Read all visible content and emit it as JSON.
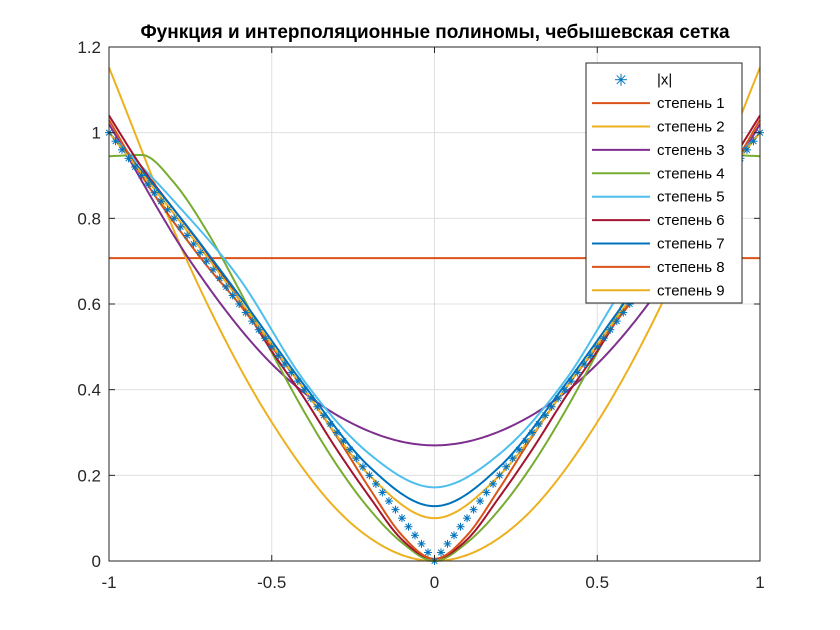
{
  "chart_data": {
    "type": "line",
    "title": "Функция и интерполяционные полиномы, чебышевская сетка",
    "xlabel": "",
    "ylabel": "",
    "xlim": [
      -1,
      1
    ],
    "ylim": [
      0,
      1.2
    ],
    "xticks": [
      {
        "value": -1,
        "label": "-1"
      },
      {
        "value": -0.5,
        "label": "-0.5"
      },
      {
        "value": 0,
        "label": "0"
      },
      {
        "value": 0.5,
        "label": "0.5"
      },
      {
        "value": 1,
        "label": "1"
      }
    ],
    "yticks": [
      {
        "value": 0,
        "label": "0"
      },
      {
        "value": 0.2,
        "label": "0.2"
      },
      {
        "value": 0.4,
        "label": "0.4"
      },
      {
        "value": 0.6,
        "label": "0.6"
      },
      {
        "value": 0.8,
        "label": "0.8"
      },
      {
        "value": 1,
        "label": "1"
      },
      {
        "value": 1.2,
        "label": "1.2"
      }
    ],
    "grid": true,
    "legend_position": "top-right",
    "function_series": {
      "name": "|x|",
      "marker": "asterisk",
      "color": "#0072BD",
      "x_range": [
        -1,
        1
      ],
      "samples": 101
    },
    "series": [
      {
        "name": "степень 1",
        "color": "#D95319",
        "x": [
          -1,
          -0.5,
          0,
          0.5,
          1
        ],
        "y": [
          0.707,
          0.707,
          0.707,
          0.707,
          0.707
        ]
      },
      {
        "name": "степень 2",
        "color": "#EDB120",
        "x": [
          -1,
          -0.75,
          -0.5,
          -0.25,
          0,
          0.25,
          0.5,
          0.75,
          1
        ],
        "y": [
          1.152,
          0.684,
          0.324,
          0.084,
          0.0,
          0.084,
          0.324,
          0.684,
          1.152
        ]
      },
      {
        "name": "степень 3",
        "color": "#7E2F8E",
        "x": [
          -1,
          -0.75,
          -0.5,
          -0.25,
          0,
          0.25,
          0.5,
          0.75,
          1
        ],
        "y": [
          1.02,
          0.7,
          0.46,
          0.32,
          0.27,
          0.32,
          0.46,
          0.7,
          1.02
        ]
      },
      {
        "name": "степень 4",
        "color": "#77AC30",
        "x": [
          -1,
          -0.9,
          -0.8,
          -0.7,
          -0.6,
          -0.5,
          -0.4,
          -0.3,
          -0.2,
          -0.1,
          0,
          0.1,
          0.2,
          0.3,
          0.4,
          0.5,
          0.6,
          0.7,
          0.8,
          0.9,
          1
        ],
        "y": [
          0.945,
          0.948,
          0.883,
          0.771,
          0.633,
          0.487,
          0.348,
          0.224,
          0.121,
          0.043,
          0.0,
          0.043,
          0.121,
          0.224,
          0.348,
          0.487,
          0.633,
          0.771,
          0.883,
          0.948,
          0.945
        ]
      },
      {
        "name": "степень 5",
        "color": "#4DBEEE",
        "x": [
          -1,
          -0.8,
          -0.6,
          -0.4,
          -0.2,
          0,
          0.2,
          0.4,
          0.6,
          0.8,
          1
        ],
        "y": [
          1.0,
          0.84,
          0.66,
          0.42,
          0.25,
          0.172,
          0.25,
          0.42,
          0.66,
          0.84,
          1.0
        ]
      },
      {
        "name": "степень 6",
        "color": "#A2142F",
        "x": [
          -1,
          -0.9,
          -0.8,
          -0.7,
          -0.6,
          -0.5,
          -0.4,
          -0.3,
          -0.2,
          -0.1,
          0,
          0.1,
          0.2,
          0.3,
          0.4,
          0.5,
          0.6,
          0.7,
          0.8,
          0.9,
          1
        ],
        "y": [
          1.04,
          0.92,
          0.82,
          0.72,
          0.61,
          0.49,
          0.38,
          0.26,
          0.15,
          0.05,
          0.005,
          0.05,
          0.15,
          0.26,
          0.38,
          0.49,
          0.61,
          0.72,
          0.82,
          0.92,
          1.04
        ]
      },
      {
        "name": "степень 7",
        "color": "#0072BD",
        "x": [
          -1,
          -0.8,
          -0.6,
          -0.4,
          -0.2,
          0,
          0.2,
          0.4,
          0.6,
          0.8,
          1
        ],
        "y": [
          1.0,
          0.82,
          0.62,
          0.41,
          0.22,
          0.128,
          0.22,
          0.41,
          0.62,
          0.82,
          1.0
        ]
      },
      {
        "name": "степень 8",
        "color": "#D95319",
        "x": [
          -1,
          -0.9,
          -0.8,
          -0.7,
          -0.6,
          -0.5,
          -0.4,
          -0.3,
          -0.2,
          -0.1,
          0,
          0.1,
          0.2,
          0.3,
          0.4,
          0.5,
          0.6,
          0.7,
          0.8,
          0.9,
          1
        ],
        "y": [
          1.03,
          0.9,
          0.79,
          0.69,
          0.6,
          0.5,
          0.4,
          0.29,
          0.17,
          0.06,
          0.005,
          0.06,
          0.17,
          0.29,
          0.4,
          0.5,
          0.6,
          0.69,
          0.79,
          0.9,
          1.03
        ]
      },
      {
        "name": "степень 9",
        "color": "#EDB120",
        "x": [
          -1,
          -0.8,
          -0.6,
          -0.4,
          -0.2,
          0,
          0.2,
          0.4,
          0.6,
          0.8,
          1
        ],
        "y": [
          1.0,
          0.81,
          0.61,
          0.4,
          0.2,
          0.1,
          0.2,
          0.4,
          0.61,
          0.81,
          1.0
        ]
      }
    ]
  }
}
